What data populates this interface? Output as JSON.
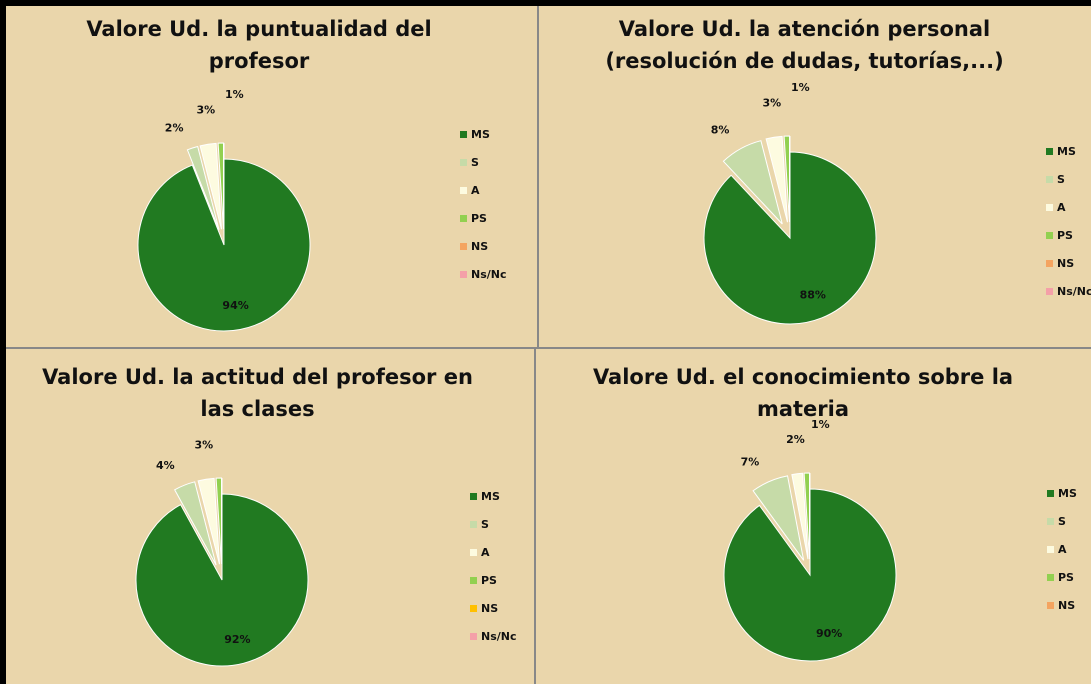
{
  "chart_data": [
    {
      "type": "pie",
      "title": [
        "Valore Ud. la puntualidad del",
        "profesor"
      ],
      "categories": [
        "MS",
        "S",
        "A",
        "PS",
        "NS",
        "Ns/Nc"
      ],
      "values": [
        94,
        2,
        3,
        1,
        0,
        0
      ],
      "value_labels": [
        "94%",
        "2%",
        "3%",
        "1%",
        null,
        null
      ],
      "colors": [
        "#217a21",
        "#c6dba8",
        "#fdfbe0",
        "#92d050",
        "#f4a460",
        "#f4a0a8"
      ]
    },
    {
      "type": "pie",
      "title": [
        "Valore Ud. la atención personal",
        "(resolución de dudas, tutorías,...)"
      ],
      "categories": [
        "MS",
        "S",
        "A",
        "PS",
        "NS",
        "Ns/Nc"
      ],
      "values": [
        88,
        8,
        3,
        1,
        0,
        0
      ],
      "value_labels": [
        "88%",
        "8%",
        "3%",
        "1%",
        null,
        null
      ],
      "colors": [
        "#217a21",
        "#c6dba8",
        "#fdfbe0",
        "#92d050",
        "#f4a460",
        "#f4a0a8"
      ]
    },
    {
      "type": "pie",
      "title": [
        "Valore Ud. la actitud del profesor en",
        "las clases"
      ],
      "categories": [
        "MS",
        "S",
        "A",
        "PS",
        "NS",
        "Ns/Nc"
      ],
      "values": [
        92,
        4,
        3,
        1,
        0,
        0
      ],
      "value_labels": [
        "92%",
        "4%",
        "3%",
        null,
        null,
        null
      ],
      "colors": [
        "#217a21",
        "#c6dba8",
        "#fdfbe0",
        "#92d050",
        "#ffc000",
        "#f4a0a8"
      ]
    },
    {
      "type": "pie",
      "title": [
        "Valore Ud. el conocimiento sobre la",
        "materia"
      ],
      "categories": [
        "MS",
        "S",
        "A",
        "PS",
        "NS"
      ],
      "values": [
        90,
        7,
        2,
        1,
        0
      ],
      "value_labels": [
        "90%",
        "7%",
        "2%",
        "1%",
        null
      ],
      "colors": [
        "#217a21",
        "#c6dba8",
        "#fdfbe0",
        "#92d050",
        "#f4a460"
      ]
    }
  ]
}
